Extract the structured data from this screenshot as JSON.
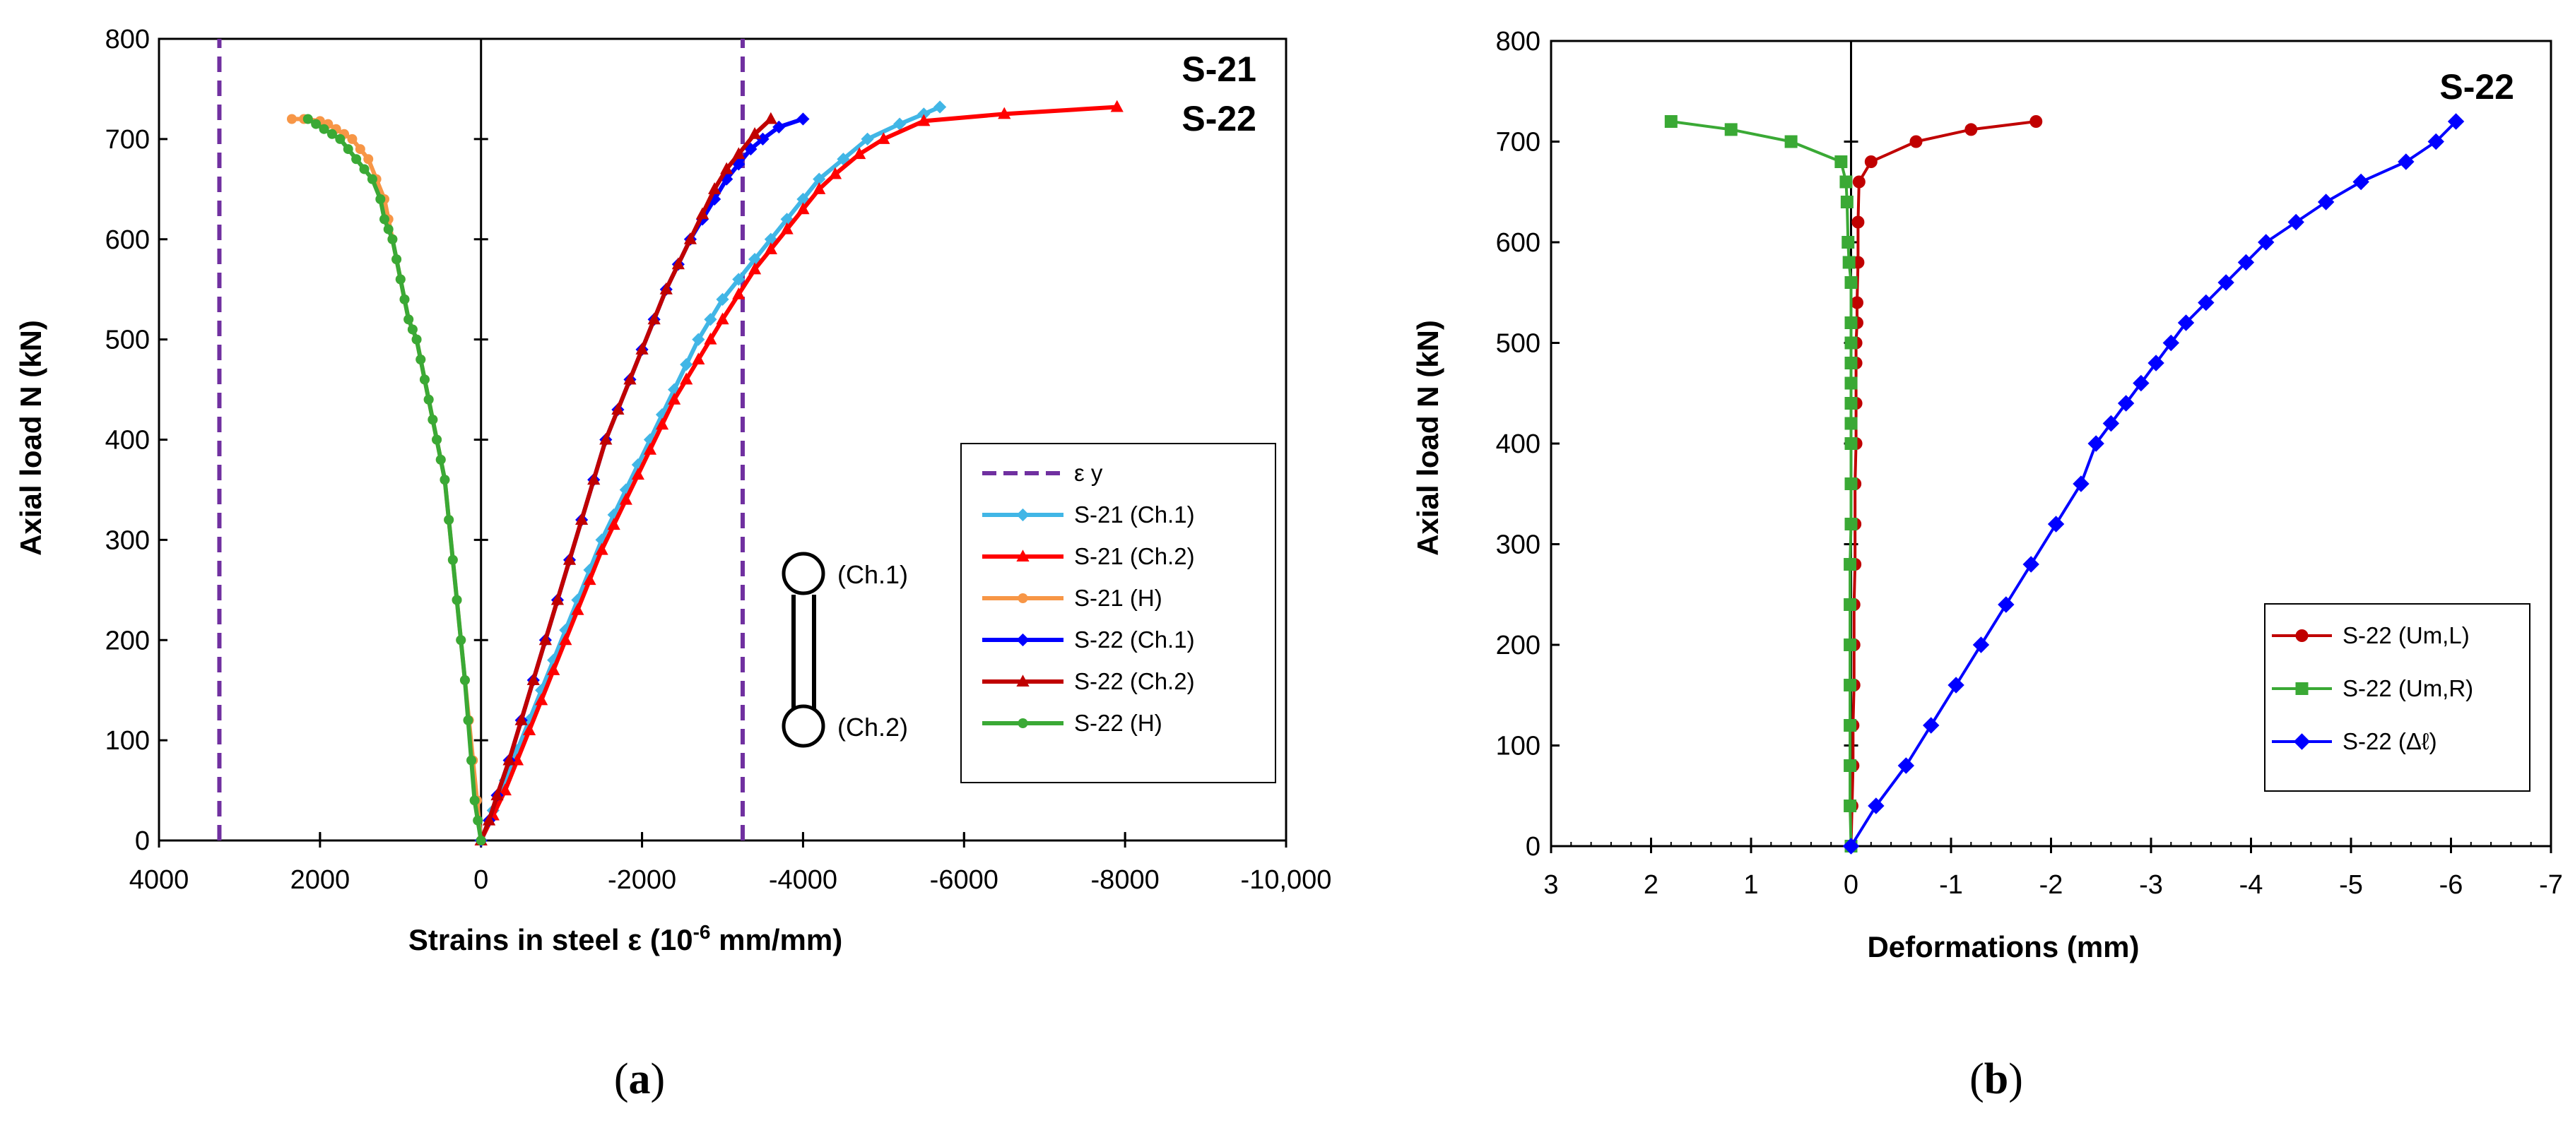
{
  "chart_data": [
    {
      "type": "line",
      "panel": "a",
      "caption": "(a)",
      "title_lines": [
        "S-21",
        "S-22"
      ],
      "xlabel": "Strains in steel ε (10",
      "xlabel_sup": "-6",
      "xlabel_tail": " mm/mm)",
      "ylabel": "Axial load N (kN)",
      "xlim": [
        4000,
        -10000
      ],
      "ylim": [
        0,
        800
      ],
      "x_ticks": [
        4000,
        2000,
        0,
        -2000,
        -4000,
        -6000,
        -8000,
        -10000
      ],
      "x_tick_labels": [
        "4000",
        "2000",
        "0",
        "-2000",
        "-4000",
        "-6000",
        "-8000",
        "-10,000"
      ],
      "y_ticks": [
        0,
        100,
        200,
        300,
        400,
        500,
        600,
        700,
        800
      ],
      "y_tick_labels": [
        "0",
        "100",
        "200",
        "300",
        "400",
        "500",
        "600",
        "700",
        "800"
      ],
      "annotations": [
        "(Ch.1)",
        "(Ch.2)"
      ],
      "series": [
        {
          "name": "ε y",
          "color": "#7030a0",
          "dash": true,
          "marker": "none",
          "segments": [
            [
              [
                3250,
                0
              ],
              [
                3250,
                800
              ]
            ],
            [
              [
                -3250,
                0
              ],
              [
                -3250,
                800
              ]
            ]
          ]
        },
        {
          "name": "S-21 (Ch.1)",
          "color": "#41b6e6",
          "marker": "diamond",
          "x": [
            0,
            -150,
            -300,
            -450,
            -600,
            -750,
            -900,
            -1050,
            -1200,
            -1350,
            -1500,
            -1650,
            -1800,
            -1950,
            -2100,
            -2250,
            -2400,
            -2550,
            -2700,
            -2850,
            -3000,
            -3200,
            -3400,
            -3600,
            -3800,
            -4000,
            -4200,
            -4500,
            -4800,
            -5200,
            -5500,
            -5700
          ],
          "y": [
            0,
            30,
            60,
            90,
            120,
            150,
            180,
            210,
            240,
            270,
            300,
            325,
            350,
            375,
            400,
            425,
            450,
            475,
            500,
            520,
            540,
            560,
            580,
            600,
            620,
            640,
            660,
            680,
            700,
            715,
            725,
            732
          ]
        },
        {
          "name": "S-21 (Ch.2)",
          "color": "#ff0000",
          "marker": "triangle",
          "x": [
            0,
            -150,
            -300,
            -450,
            -600,
            -750,
            -900,
            -1050,
            -1200,
            -1350,
            -1500,
            -1650,
            -1800,
            -1950,
            -2100,
            -2250,
            -2400,
            -2550,
            -2700,
            -2850,
            -3000,
            -3200,
            -3400,
            -3600,
            -3800,
            -4000,
            -4200,
            -4400,
            -4700,
            -5000,
            -5500,
            -6500,
            -7900
          ],
          "y": [
            0,
            25,
            50,
            80,
            110,
            140,
            170,
            200,
            230,
            260,
            290,
            315,
            340,
            365,
            390,
            415,
            440,
            460,
            480,
            500,
            520,
            545,
            570,
            590,
            610,
            630,
            650,
            665,
            685,
            700,
            718,
            725,
            732
          ]
        },
        {
          "name": "S-21 (H)",
          "color": "#f79646",
          "marker": "circle",
          "x": [
            0,
            50,
            100,
            150,
            200,
            250,
            300,
            350,
            400,
            450,
            500,
            550,
            600,
            650,
            700,
            750,
            800,
            850,
            900,
            950,
            1000,
            1050,
            1100,
            1150,
            1200,
            1300,
            1400,
            1500,
            1600,
            1700,
            1800,
            1900,
            2000,
            2200,
            2350
          ],
          "y": [
            0,
            40,
            80,
            120,
            160,
            200,
            240,
            280,
            320,
            360,
            380,
            400,
            420,
            440,
            460,
            480,
            500,
            510,
            520,
            540,
            560,
            580,
            600,
            620,
            640,
            660,
            680,
            690,
            700,
            705,
            710,
            715,
            718,
            720,
            720
          ]
        },
        {
          "name": "S-22 (Ch.1)",
          "color": "#0000ff",
          "marker": "diamond",
          "x": [
            0,
            -100,
            -200,
            -350,
            -500,
            -650,
            -800,
            -950,
            -1100,
            -1250,
            -1400,
            -1550,
            -1700,
            -1850,
            -2000,
            -2150,
            -2300,
            -2450,
            -2600,
            -2750,
            -2900,
            -3050,
            -3200,
            -3350,
            -3500,
            -3700,
            -4000
          ],
          "y": [
            0,
            20,
            45,
            80,
            120,
            160,
            200,
            240,
            280,
            320,
            360,
            400,
            430,
            460,
            490,
            520,
            550,
            575,
            600,
            620,
            640,
            660,
            675,
            690,
            700,
            712,
            720
          ]
        },
        {
          "name": "S-22 (Ch.2)",
          "color": "#c00000",
          "marker": "triangle",
          "x": [
            0,
            -100,
            -200,
            -350,
            -500,
            -650,
            -800,
            -950,
            -1100,
            -1250,
            -1400,
            -1550,
            -1700,
            -1850,
            -2000,
            -2150,
            -2300,
            -2450,
            -2600,
            -2750,
            -2900,
            -3050,
            -3200,
            -3400,
            -3600
          ],
          "y": [
            0,
            20,
            45,
            80,
            120,
            160,
            200,
            240,
            280,
            320,
            360,
            400,
            430,
            460,
            490,
            520,
            550,
            575,
            600,
            625,
            650,
            670,
            685,
            705,
            720
          ]
        },
        {
          "name": "S-22 (H)",
          "color": "#3aa935",
          "marker": "circle",
          "x": [
            0,
            40,
            80,
            120,
            160,
            200,
            250,
            300,
            350,
            400,
            450,
            500,
            550,
            600,
            650,
            700,
            750,
            800,
            850,
            900,
            950,
            1000,
            1050,
            1100,
            1150,
            1200,
            1250,
            1350,
            1450,
            1550,
            1650,
            1750,
            1850,
            1950,
            2050,
            2150
          ],
          "y": [
            0,
            20,
            40,
            80,
            120,
            160,
            200,
            240,
            280,
            320,
            360,
            380,
            400,
            420,
            440,
            460,
            480,
            500,
            510,
            520,
            540,
            560,
            580,
            600,
            610,
            620,
            640,
            660,
            670,
            680,
            690,
            700,
            705,
            710,
            715,
            720
          ]
        }
      ]
    },
    {
      "type": "line",
      "panel": "b",
      "caption": "(b)",
      "title": "S-22",
      "xlabel": "Deformations (mm)",
      "ylabel": "Axial load N (kN)",
      "xlim": [
        3,
        -7
      ],
      "ylim": [
        0,
        800
      ],
      "x_ticks": [
        3,
        2,
        1,
        0,
        -1,
        -2,
        -3,
        -4,
        -5,
        -6,
        -7
      ],
      "x_tick_labels": [
        "3",
        "2",
        "1",
        "0",
        "-1",
        "-2",
        "-3",
        "-4",
        "-5",
        "-6",
        "-7"
      ],
      "y_ticks": [
        0,
        100,
        200,
        300,
        400,
        500,
        600,
        700,
        800
      ],
      "y_tick_labels": [
        "0",
        "100",
        "200",
        "300",
        "400",
        "500",
        "600",
        "700",
        "800"
      ],
      "series": [
        {
          "name": "S-22 (Um,L)",
          "color": "#c00000",
          "marker": "circle",
          "x": [
            0,
            -0.01,
            -0.02,
            -0.02,
            -0.03,
            -0.03,
            -0.03,
            -0.04,
            -0.04,
            -0.04,
            -0.05,
            -0.05,
            -0.05,
            -0.05,
            -0.06,
            -0.06,
            -0.07,
            -0.07,
            -0.08,
            -0.2,
            -0.65,
            -1.2,
            -1.85
          ],
          "y": [
            0,
            40,
            80,
            120,
            160,
            200,
            240,
            280,
            320,
            360,
            400,
            440,
            480,
            500,
            520,
            540,
            580,
            620,
            660,
            680,
            700,
            712,
            720
          ]
        },
        {
          "name": "S-22 (Um,R)",
          "color": "#3aa935",
          "marker": "square",
          "x": [
            0,
            0.01,
            0.01,
            0.01,
            0.01,
            0.01,
            0.01,
            0.01,
            0.0,
            0.0,
            0.0,
            0.0,
            0.0,
            0.0,
            0.0,
            0.0,
            0.0,
            0.0,
            0.02,
            0.03,
            0.04,
            0.05,
            0.1,
            0.6,
            1.2,
            1.8
          ],
          "y": [
            0,
            40,
            80,
            120,
            160,
            200,
            240,
            280,
            320,
            360,
            400,
            420,
            440,
            460,
            480,
            500,
            520,
            560,
            580,
            600,
            640,
            660,
            680,
            700,
            712,
            720
          ]
        },
        {
          "name": "S-22 (Δℓ)",
          "color": "#0000ff",
          "marker": "diamond",
          "x": [
            0,
            -0.25,
            -0.55,
            -0.8,
            -1.05,
            -1.3,
            -1.55,
            -1.8,
            -2.05,
            -2.3,
            -2.45,
            -2.6,
            -2.75,
            -2.9,
            -3.05,
            -3.2,
            -3.35,
            -3.55,
            -3.75,
            -3.95,
            -4.15,
            -4.45,
            -4.75,
            -5.1,
            -5.55,
            -5.85,
            -6.05
          ],
          "y": [
            0,
            40,
            80,
            120,
            160,
            200,
            240,
            280,
            320,
            360,
            400,
            420,
            440,
            460,
            480,
            500,
            520,
            540,
            560,
            580,
            600,
            620,
            640,
            660,
            680,
            700,
            720
          ]
        }
      ]
    }
  ]
}
